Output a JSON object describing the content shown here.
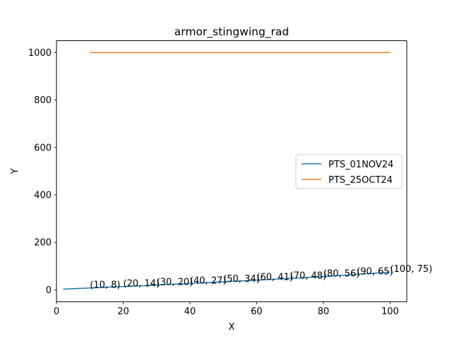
{
  "chart_data": {
    "type": "line",
    "title": "armor_stingwing_rad",
    "xlabel": "X",
    "ylabel": "Y",
    "xlim": [
      0,
      105
    ],
    "ylim": [
      -50,
      1050
    ],
    "xticks": [
      0,
      20,
      40,
      60,
      80,
      100
    ],
    "yticks": [
      0,
      200,
      400,
      600,
      800,
      1000
    ],
    "grid": false,
    "legend_position": "center-right",
    "series": [
      {
        "name": "PTS_01NOV24",
        "color": "#1f77b4",
        "x": [
          2,
          10,
          20,
          30,
          40,
          50,
          60,
          70,
          80,
          90,
          100
        ],
        "y": [
          3,
          8,
          14,
          20,
          27,
          34,
          41,
          48,
          56,
          65,
          75
        ]
      },
      {
        "name": "PTS_25OCT24",
        "color": "#ff7f0e",
        "x": [
          10,
          100
        ],
        "y": [
          1000,
          1000
        ]
      }
    ],
    "annotations": [
      {
        "text": "(10, 8)",
        "x": 10,
        "y": 8
      },
      {
        "text": "(20, 14)",
        "x": 20,
        "y": 14
      },
      {
        "text": "(30, 20)",
        "x": 30,
        "y": 20
      },
      {
        "text": "(40, 27)",
        "x": 40,
        "y": 27
      },
      {
        "text": "(50, 34)",
        "x": 50,
        "y": 34
      },
      {
        "text": "(60, 41)",
        "x": 60,
        "y": 41
      },
      {
        "text": "(70, 48)",
        "x": 70,
        "y": 48
      },
      {
        "text": "(80, 56)",
        "x": 80,
        "y": 56
      },
      {
        "text": "(90, 65)",
        "x": 90,
        "y": 65
      },
      {
        "text": "(100, 75)",
        "x": 100,
        "y": 75
      }
    ]
  }
}
